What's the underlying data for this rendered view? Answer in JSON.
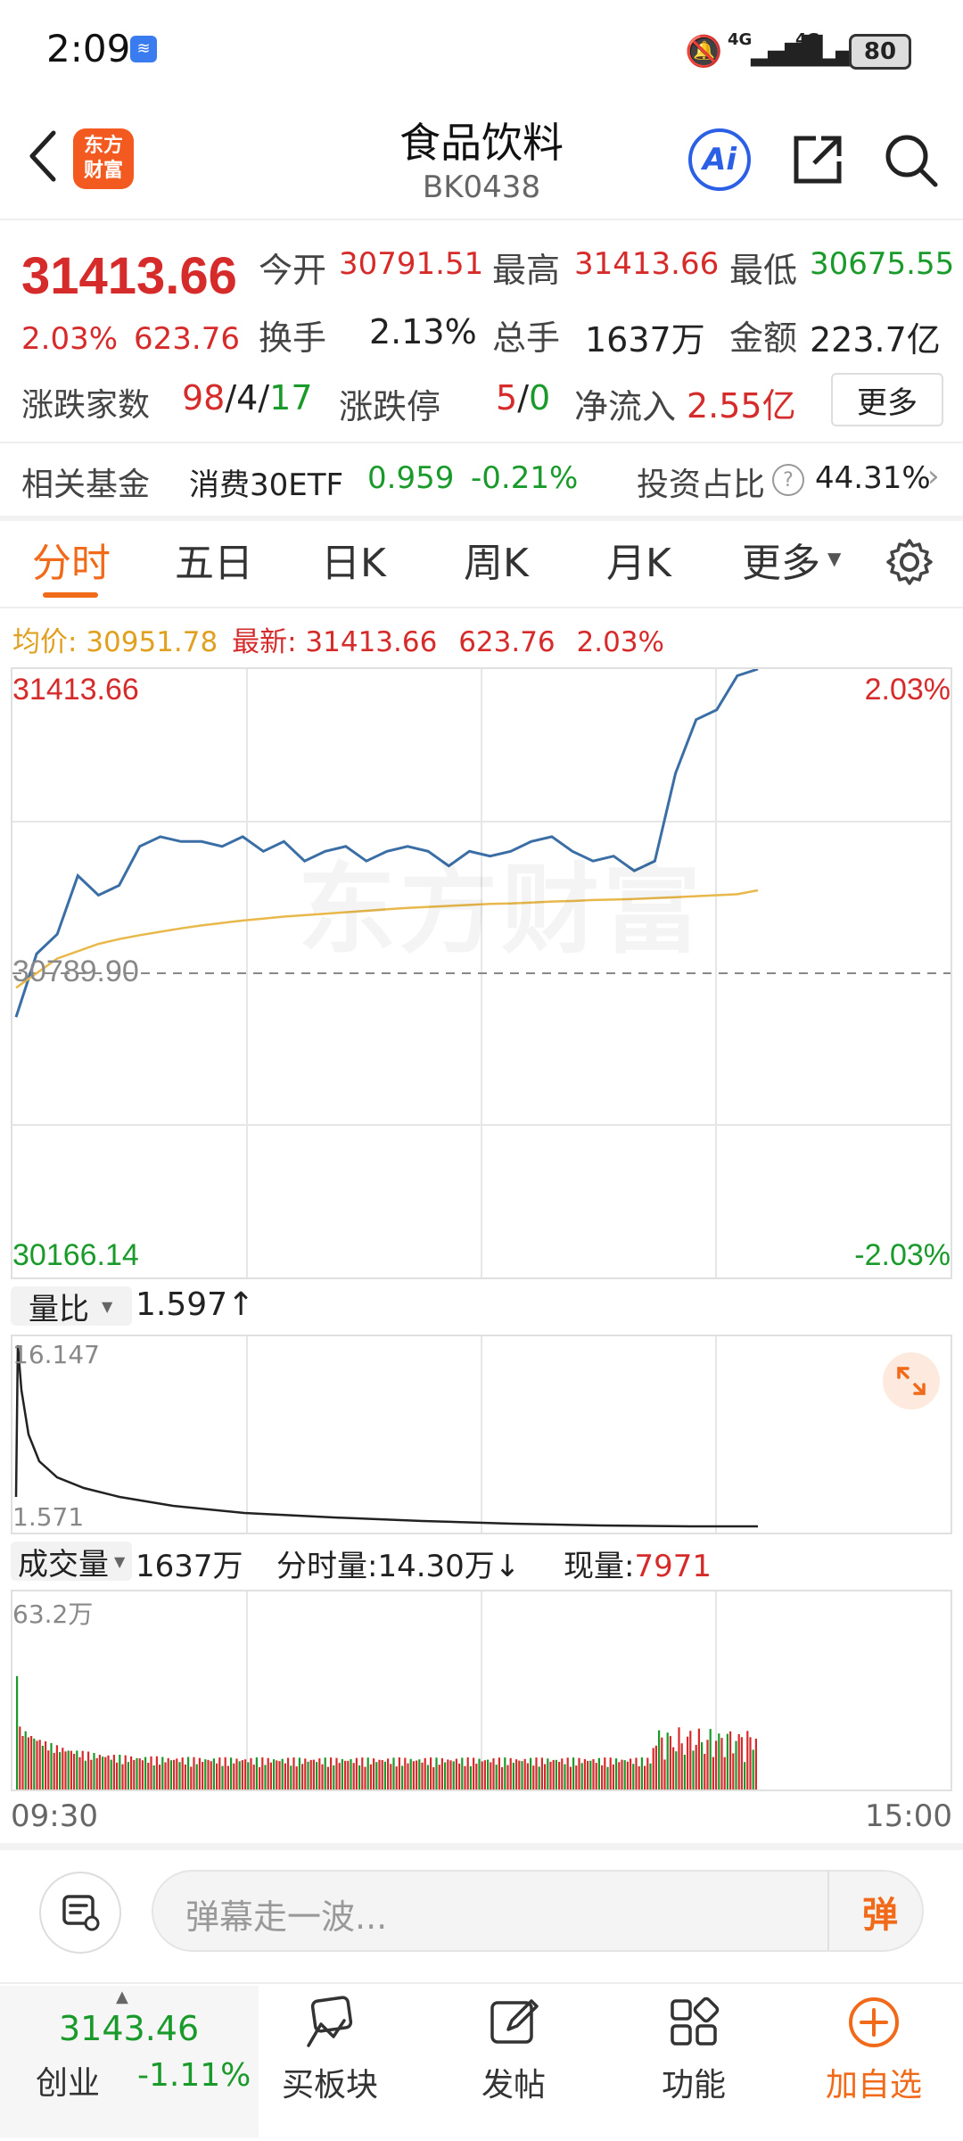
{
  "status_bar": {
    "time": "2:09",
    "network1": "4G",
    "network2": "4G",
    "battery": "80"
  },
  "header": {
    "title": "食品饮料",
    "code": "BK0438",
    "logo_line1": "东方",
    "logo_line2": "财富",
    "ai_label": "Ai"
  },
  "quote": {
    "price": "31413.66",
    "change_pct": "2.03%",
    "change": "623.76",
    "open_label": "今开",
    "open": "30791.51",
    "high_label": "最高",
    "high": "31413.66",
    "low_label": "最低",
    "low": "30675.55",
    "turnover_label": "换手",
    "turnover": "2.13%",
    "volume_label": "总手",
    "volume": "1637万",
    "amount_label": "金额",
    "amount": "223.7亿",
    "breadth_label": "涨跌家数",
    "breadth_up": "98",
    "breadth_flat": "4",
    "breadth_down": "17",
    "breadth_sep": "/",
    "limit_label": "涨跌停",
    "limit_up": "5",
    "limit_down": "0",
    "netflow_label": "净流入",
    "netflow": "2.55亿",
    "more_button": "更多"
  },
  "fund": {
    "label": "相关基金",
    "name": "消费30ETF",
    "price": "0.959",
    "pct": "-0.21%",
    "ratio_label": "投资占比",
    "ratio": "44.31%"
  },
  "tabs": [
    {
      "label": "分时",
      "active": true
    },
    {
      "label": "五日"
    },
    {
      "label": "日K"
    },
    {
      "label": "周K"
    },
    {
      "label": "月K"
    },
    {
      "label": "更多"
    }
  ],
  "info_line": {
    "avg_label": "均价:",
    "avg": "30951.78",
    "last_label": "最新:",
    "last": "31413.66",
    "change": "623.76",
    "pct": "2.03%"
  },
  "chart": {
    "top_value": "31413.66",
    "top_pct": "2.03%",
    "bottom_value": "30166.14",
    "bottom_pct": "-2.03%",
    "base_value": "30789.90",
    "watermark": "东方财富",
    "colors": {
      "price_line": "#3a6ea5",
      "avg_line": "#e8b84a",
      "up": "#d62b2b",
      "down": "#1a9a2a"
    }
  },
  "chart_data": {
    "type": "line",
    "series": [
      {
        "values": [
          30700,
          30830,
          30870,
          30990,
          30950,
          30970,
          31050,
          31070,
          31060,
          31060,
          31050,
          31070,
          31040,
          31060,
          31020,
          31040,
          31050,
          31020,
          31040,
          31050,
          31040,
          31010,
          31040,
          31030,
          31040,
          31060,
          31070,
          31040,
          31020,
          31030,
          31000,
          31020,
          31200,
          31310,
          31330,
          31400,
          31413.66
        ]
      },
      {
        "values": [
          30760,
          30790,
          30820,
          30835,
          30850,
          30860,
          30868,
          30875,
          30882,
          30888,
          30893,
          30898,
          30902,
          30906,
          30909,
          30912,
          30915,
          30918,
          30921,
          30924,
          30926,
          30928,
          30930,
          30932,
          30933,
          30935,
          30937,
          30938,
          30940,
          30941,
          30942,
          30944,
          30946,
          30948,
          30950,
          30952,
          30960
        ]
      }
    ],
    "ylim": [
      30166.14,
      31413.66
    ]
  },
  "ratio_panel": {
    "label": "量比",
    "value": "1.597",
    "arrow": "↑",
    "top": "16.147",
    "bottom": "1.571"
  },
  "volume_panel": {
    "label": "成交量",
    "total": "1637万",
    "min_label": "分时量:",
    "min_value": "14.30万",
    "min_arrow": "↓",
    "now_label": "现量:",
    "now_value": "7971",
    "top": "63.2万"
  },
  "time_axis": {
    "start": "09:30",
    "end": "15:00"
  },
  "comment": {
    "placeholder": "弹幕走一波...",
    "danmu_label": "弹"
  },
  "bottom_nav": {
    "index_value": "3143.46",
    "index_name": "创业",
    "index_pct": "-1.11%",
    "items": [
      {
        "label": "买板块"
      },
      {
        "label": "发帖"
      },
      {
        "label": "功能"
      },
      {
        "label": "加自选"
      }
    ]
  }
}
